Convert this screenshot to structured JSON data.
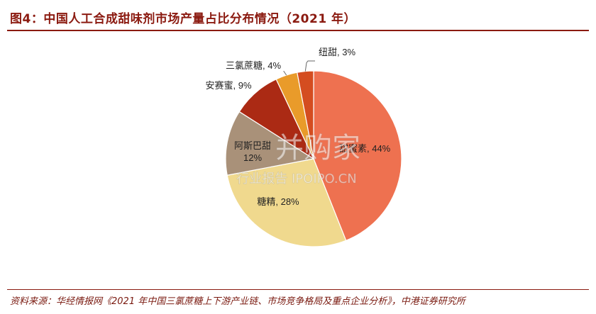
{
  "title": "图4：中国人工合成甜味剂市场产量占比分布情况（2021 年）",
  "source": "资料来源：华经情报网《2021 年中国三氯蔗糖上下游产业链、市场竞争格局及重点企业分析》，中港证券研究所",
  "watermark": {
    "main": "并购家",
    "sub": "行业报告 IPOIPO.CN"
  },
  "chart_data": {
    "type": "pie",
    "title": "",
    "slices": [
      {
        "name": "甜蜜素",
        "value": 44,
        "label": "甜蜜素, 44%",
        "color": "#ee7150"
      },
      {
        "name": "糖精",
        "value": 28,
        "label": "糖精, 28%",
        "color": "#f0d98e"
      },
      {
        "name": "阿斯巴甜",
        "value": 12,
        "label": "阿斯巴甜, 12%",
        "color": "#a99179"
      },
      {
        "name": "安赛蜜",
        "value": 9,
        "label": "安赛蜜, 9%",
        "color": "#ab2a14"
      },
      {
        "name": "三氯蔗糖",
        "value": 4,
        "label": "三氯蔗糖, 4%",
        "color": "#e99b2a"
      },
      {
        "name": "纽甜",
        "value": 3,
        "label": "纽甜, 3%",
        "color": "#d44d20"
      }
    ]
  }
}
